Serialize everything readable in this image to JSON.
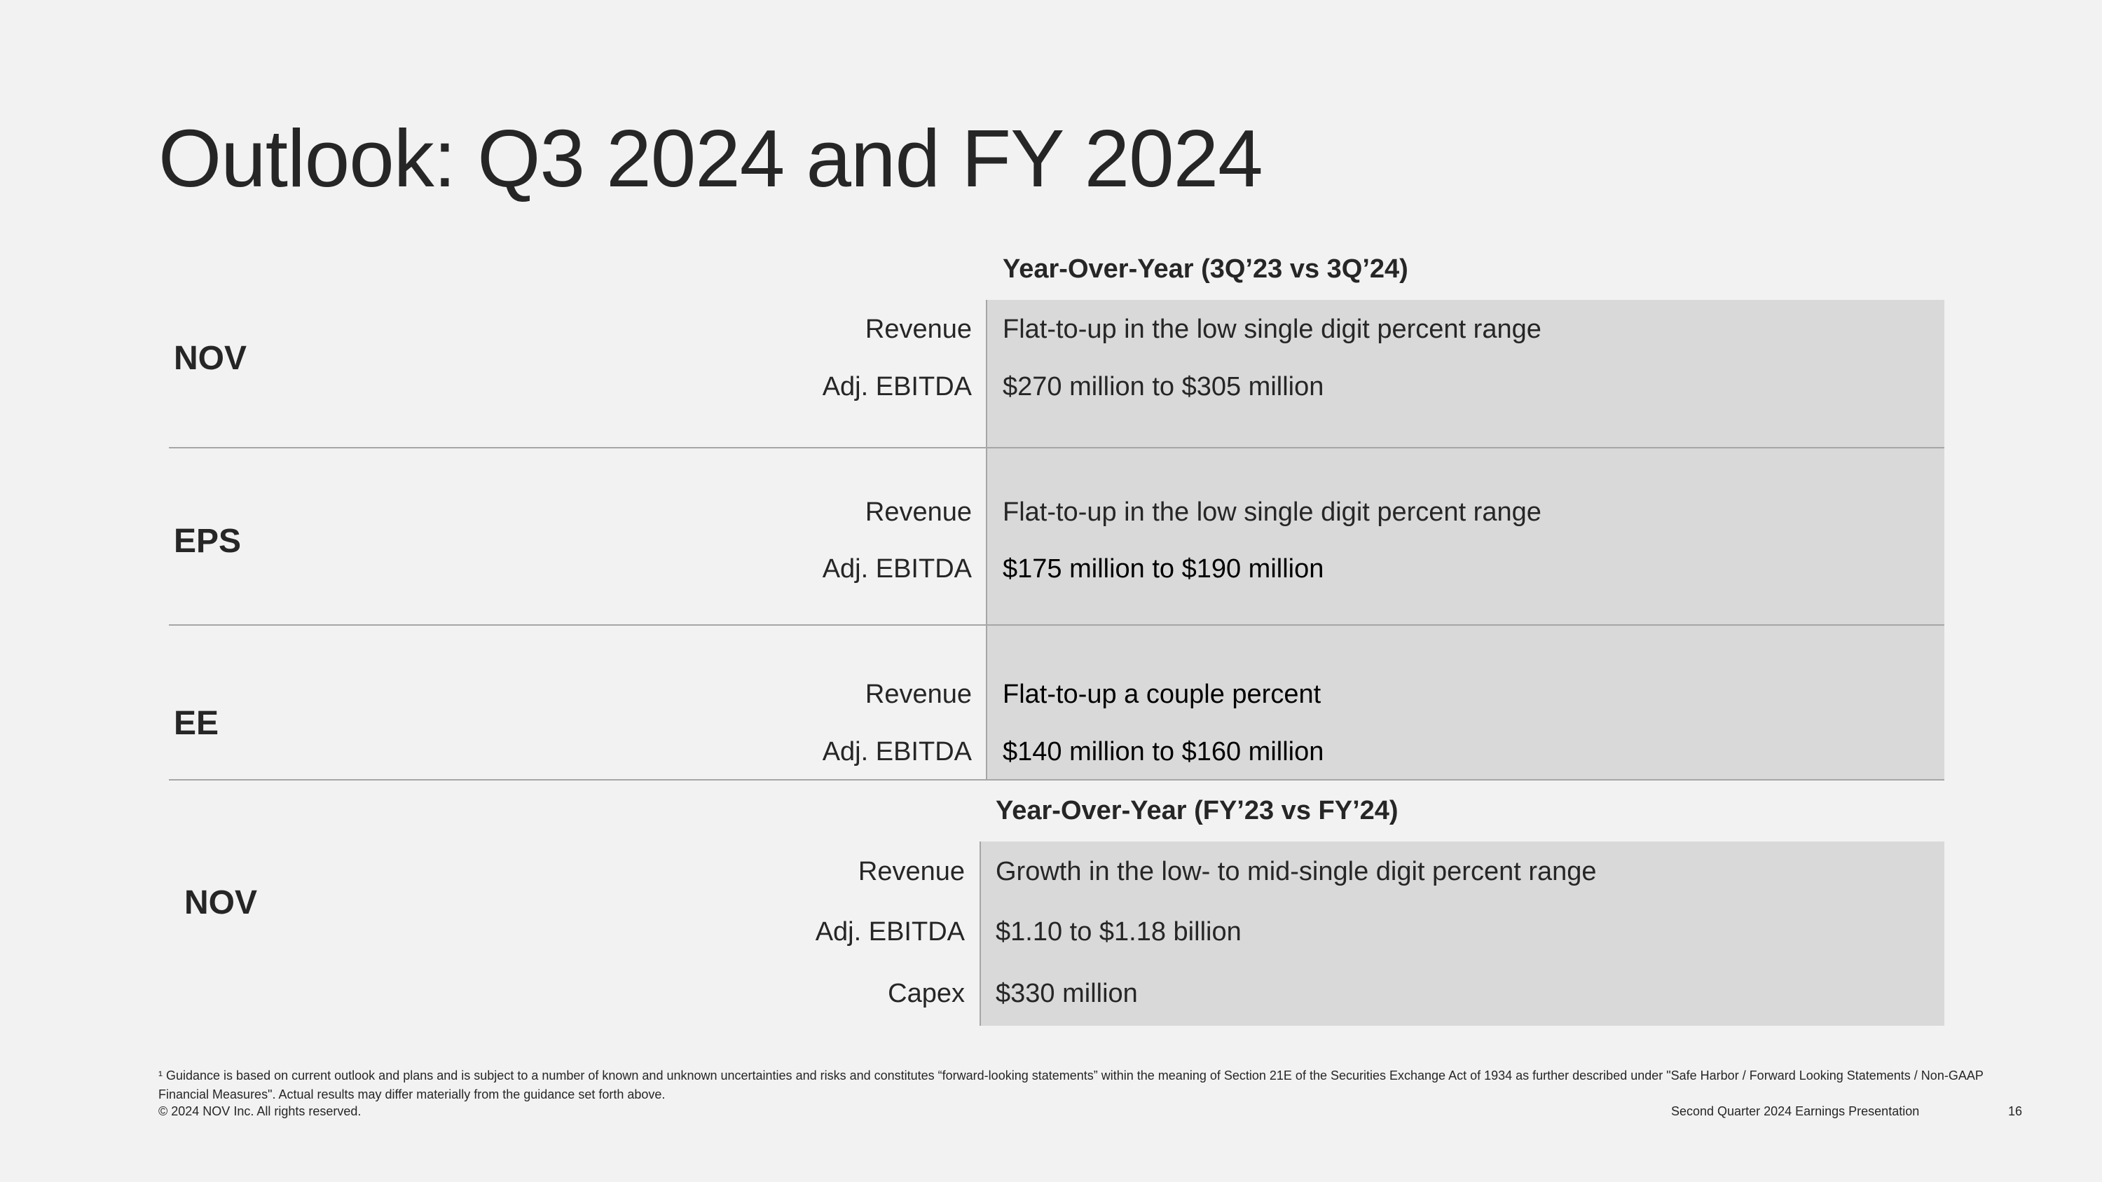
{
  "slide": {
    "title": "Outlook: Q3 2024 and FY 2024"
  },
  "quarterly": {
    "header": "Year-Over-Year (3Q’23 vs 3Q’24)",
    "groups": [
      {
        "segment": "NOV",
        "rows": [
          {
            "metric": "Revenue",
            "value": "Flat-to-up in the low single digit percent range"
          },
          {
            "metric": "Adj. EBITDA",
            "value": "$270 million to $305 million"
          }
        ]
      },
      {
        "segment": "EPS",
        "rows": [
          {
            "metric": "Revenue",
            "value": "Flat-to-up in the low single digit percent range"
          },
          {
            "metric": "Adj. EBITDA",
            "value": "$175 million to $190 million"
          }
        ]
      },
      {
        "segment": "EE",
        "rows": [
          {
            "metric": "Revenue",
            "value": "Flat-to-up a couple percent"
          },
          {
            "metric": "Adj. EBITDA",
            "value": "$140 million to $160 million"
          }
        ]
      }
    ]
  },
  "annual": {
    "header": "Year-Over-Year (FY’23 vs FY’24)",
    "segment": "NOV",
    "rows": [
      {
        "metric": "Revenue",
        "value": "Growth in the low- to mid-single digit percent range"
      },
      {
        "metric": "Adj. EBITDA",
        "value": "$1.10 to $1.18 billion"
      },
      {
        "metric": "Capex",
        "value": "$330 million"
      }
    ]
  },
  "footer": {
    "footnote": "¹ Guidance is based on current outlook and plans and is subject to a number of known and unknown uncertainties and risks and constitutes “forward-looking statements” within the meaning of Section 21E of the Securities Exchange Act of 1934 as further described under \"Safe Harbor / Forward Looking Statements / Non-GAAP Financial Measures\". Actual results may differ materially from the guidance set forth above.",
    "copyright": "© 2024 NOV Inc. All rights reserved.",
    "presentation": "Second Quarter 2024 Earnings Presentation",
    "page_number": "16"
  },
  "colors": {
    "background": "#f2f2f2",
    "shade": "#d9d9d9",
    "rule": "#a6a6a6",
    "text": "#262626"
  }
}
